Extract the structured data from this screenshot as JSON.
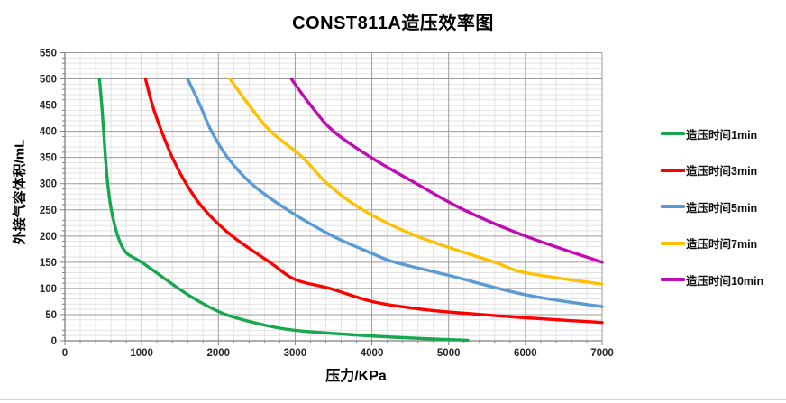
{
  "chart_data": {
    "type": "line",
    "title": "CONST811A造压效率图",
    "xlabel": "压力/KPa",
    "ylabel": "外接气容体积/mL",
    "xlim": [
      0,
      7000
    ],
    "ylim": [
      0,
      550
    ],
    "x_ticks": [
      0,
      1000,
      2000,
      3000,
      4000,
      5000,
      6000,
      7000
    ],
    "y_ticks": [
      0,
      50,
      100,
      150,
      200,
      250,
      300,
      350,
      400,
      450,
      500,
      550
    ],
    "x_minor_step": 200,
    "y_minor_step": 10,
    "grid": "major+minor",
    "legend_position": "right",
    "series": [
      {
        "name": "造压时间1min",
        "color": "#17a74e",
        "points": [
          [
            450,
            500
          ],
          [
            480,
            450
          ],
          [
            505,
            400
          ],
          [
            528,
            350
          ],
          [
            558,
            300
          ],
          [
            605,
            250
          ],
          [
            690,
            200
          ],
          [
            800,
            168
          ],
          [
            1000,
            150
          ],
          [
            1480,
            100
          ],
          [
            1750,
            75
          ],
          [
            2100,
            50
          ],
          [
            2600,
            30
          ],
          [
            3000,
            20
          ],
          [
            3700,
            12
          ],
          [
            4400,
            6
          ],
          [
            5250,
            1
          ]
        ]
      },
      {
        "name": "造压时间3min",
        "color": "#ff0000",
        "points": [
          [
            1050,
            500
          ],
          [
            1140,
            450
          ],
          [
            1260,
            400
          ],
          [
            1400,
            350
          ],
          [
            1580,
            300
          ],
          [
            1820,
            250
          ],
          [
            2180,
            200
          ],
          [
            2670,
            150
          ],
          [
            3000,
            117
          ],
          [
            3450,
            100
          ],
          [
            4000,
            75
          ],
          [
            4500,
            63
          ],
          [
            5000,
            55
          ],
          [
            6000,
            44
          ],
          [
            7000,
            35
          ]
        ]
      },
      {
        "name": "造压时间5min",
        "color": "#5b9bd5",
        "points": [
          [
            1600,
            500
          ],
          [
            1760,
            450
          ],
          [
            1910,
            400
          ],
          [
            2120,
            350
          ],
          [
            2430,
            300
          ],
          [
            2900,
            250
          ],
          [
            3490,
            200
          ],
          [
            4000,
            167
          ],
          [
            4300,
            150
          ],
          [
            5000,
            125
          ],
          [
            6000,
            88
          ],
          [
            7000,
            65
          ]
        ]
      },
      {
        "name": "造压时间7min",
        "color": "#ffc000",
        "points": [
          [
            2150,
            500
          ],
          [
            2400,
            450
          ],
          [
            2680,
            400
          ],
          [
            3100,
            350
          ],
          [
            3420,
            300
          ],
          [
            3880,
            250
          ],
          [
            4580,
            200
          ],
          [
            5600,
            150
          ],
          [
            6000,
            130
          ],
          [
            7000,
            108
          ]
        ]
      },
      {
        "name": "造压时间10min",
        "color": "#c00cb4",
        "points": [
          [
            2950,
            500
          ],
          [
            3200,
            450
          ],
          [
            3500,
            400
          ],
          [
            3990,
            350
          ],
          [
            4580,
            300
          ],
          [
            5200,
            250
          ],
          [
            6000,
            200
          ],
          [
            7000,
            150
          ]
        ]
      }
    ]
  },
  "style_colors": {
    "major_grid": "#9b9b9b",
    "minor_grid": "#e2e2e2",
    "axis_line": "#7f7f7f",
    "tick_label": "#262626"
  }
}
